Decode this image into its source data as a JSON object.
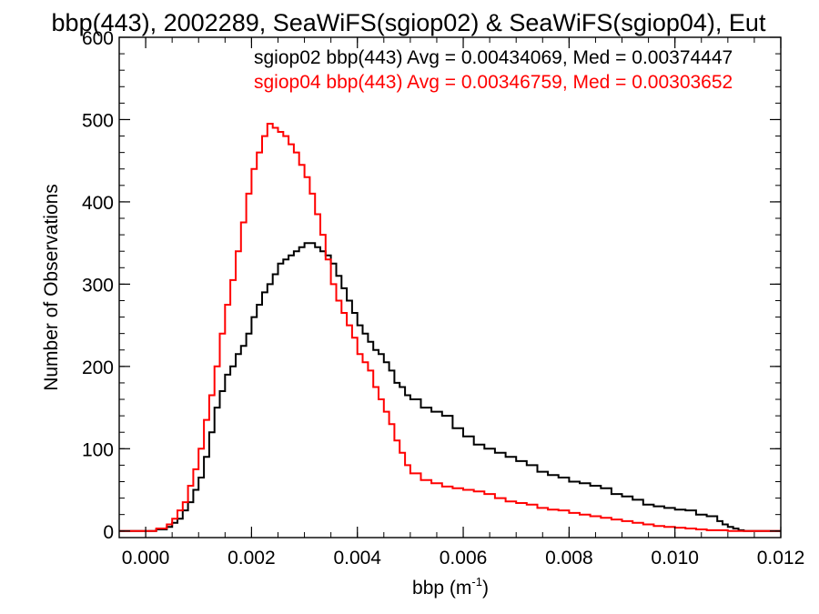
{
  "chart_data": {
    "type": "line",
    "title": "bbp(443), 2002289, SeaWiFS(sgiop02) & SeaWiFS(sgiop04), Eut",
    "xlabel_main": "bbp (m",
    "xlabel_sup": "-1",
    "xlabel_close": ")",
    "ylabel": "Number of Observations",
    "xlim": [
      -0.0005,
      0.012
    ],
    "ylim": [
      -8,
      600
    ],
    "x_ticks": [
      {
        "v": 0.0,
        "label": "0.000"
      },
      {
        "v": 0.002,
        "label": "0.002"
      },
      {
        "v": 0.004,
        "label": "0.004"
      },
      {
        "v": 0.006,
        "label": "0.006"
      },
      {
        "v": 0.008,
        "label": "0.008"
      },
      {
        "v": 0.01,
        "label": "0.010"
      },
      {
        "v": 0.012,
        "label": "0.012"
      }
    ],
    "y_ticks": [
      {
        "v": 0,
        "label": "0"
      },
      {
        "v": 100,
        "label": "100"
      },
      {
        "v": 200,
        "label": "200"
      },
      {
        "v": 300,
        "label": "300"
      },
      {
        "v": 400,
        "label": "400"
      },
      {
        "v": 500,
        "label": "500"
      },
      {
        "v": 600,
        "label": "600"
      }
    ],
    "grid": false,
    "legend_position": "top-right",
    "annotations": [
      {
        "text": "sgiop02 bbp(443) Avg = 0.00434069, Med = 0.00374447",
        "color": "#000000"
      },
      {
        "text": "sgiop04 bbp(443) Avg = 0.00346759, Med = 0.00303652",
        "color": "#ff0000"
      }
    ],
    "series": [
      {
        "name": "sgiop02",
        "color": "#000000",
        "x": [
          -0.0005,
          0.0,
          0.0002,
          0.0004,
          0.0005,
          0.0006,
          0.0007,
          0.0008,
          0.0009,
          0.001,
          0.0011,
          0.0012,
          0.0013,
          0.0014,
          0.0015,
          0.0016,
          0.0017,
          0.0018,
          0.0019,
          0.002,
          0.0021,
          0.0022,
          0.0023,
          0.0024,
          0.0025,
          0.0026,
          0.0027,
          0.0028,
          0.0029,
          0.003,
          0.0031,
          0.0032,
          0.0033,
          0.0034,
          0.0035,
          0.0036,
          0.0037,
          0.0038,
          0.0039,
          0.004,
          0.0041,
          0.0042,
          0.0043,
          0.0044,
          0.0045,
          0.0046,
          0.0047,
          0.0048,
          0.0049,
          0.005,
          0.0052,
          0.0054,
          0.0056,
          0.0058,
          0.006,
          0.0062,
          0.0064,
          0.0066,
          0.0068,
          0.007,
          0.0072,
          0.0074,
          0.0076,
          0.0078,
          0.008,
          0.0082,
          0.0084,
          0.0086,
          0.0088,
          0.009,
          0.0092,
          0.0094,
          0.0096,
          0.0098,
          0.01,
          0.0102,
          0.0104,
          0.0106,
          0.0108,
          0.0109,
          0.011,
          0.0111,
          0.0112,
          0.0113,
          0.0114,
          0.0115,
          0.012
        ],
        "y": [
          0,
          0,
          2,
          5,
          10,
          15,
          25,
          35,
          50,
          65,
          90,
          120,
          150,
          170,
          190,
          200,
          215,
          225,
          240,
          260,
          275,
          290,
          300,
          312,
          325,
          330,
          335,
          340,
          345,
          350,
          350,
          345,
          340,
          335,
          325,
          310,
          295,
          280,
          265,
          250,
          240,
          230,
          220,
          215,
          205,
          195,
          180,
          175,
          165,
          160,
          150,
          145,
          140,
          125,
          115,
          105,
          100,
          95,
          90,
          85,
          80,
          72,
          68,
          65,
          60,
          58,
          55,
          52,
          45,
          42,
          38,
          32,
          30,
          28,
          26,
          25,
          20,
          18,
          12,
          8,
          5,
          3,
          1,
          0,
          0,
          0,
          0
        ]
      },
      {
        "name": "sgiop04",
        "color": "#ff0000",
        "x": [
          -0.0005,
          0.0,
          0.0002,
          0.0004,
          0.0005,
          0.0006,
          0.0007,
          0.0008,
          0.0009,
          0.001,
          0.0011,
          0.0012,
          0.0013,
          0.0014,
          0.0015,
          0.0016,
          0.0017,
          0.0018,
          0.0019,
          0.002,
          0.0021,
          0.0022,
          0.0023,
          0.0024,
          0.0025,
          0.0026,
          0.0027,
          0.0028,
          0.0029,
          0.003,
          0.0031,
          0.0032,
          0.0033,
          0.0034,
          0.0035,
          0.0036,
          0.0037,
          0.0038,
          0.0039,
          0.004,
          0.0041,
          0.0042,
          0.0043,
          0.0044,
          0.0045,
          0.0046,
          0.0047,
          0.0048,
          0.0049,
          0.005,
          0.0052,
          0.0054,
          0.0056,
          0.0058,
          0.006,
          0.0062,
          0.0064,
          0.0066,
          0.0068,
          0.007,
          0.0072,
          0.0074,
          0.0076,
          0.0078,
          0.008,
          0.0082,
          0.0084,
          0.0086,
          0.0088,
          0.009,
          0.0092,
          0.0094,
          0.0096,
          0.0098,
          0.01,
          0.0102,
          0.0104,
          0.0106,
          0.0108,
          0.0109,
          0.011,
          0.0111,
          0.0112,
          0.0113,
          0.0114,
          0.0115,
          0.012
        ],
        "y": [
          0,
          0,
          3,
          8,
          15,
          25,
          35,
          55,
          75,
          100,
          135,
          165,
          200,
          240,
          275,
          305,
          340,
          375,
          410,
          440,
          460,
          480,
          495,
          490,
          485,
          480,
          470,
          460,
          445,
          430,
          410,
          385,
          360,
          330,
          300,
          280,
          265,
          250,
          235,
          215,
          205,
          195,
          175,
          160,
          145,
          130,
          110,
          95,
          80,
          70,
          62,
          58,
          54,
          52,
          50,
          48,
          45,
          40,
          36,
          34,
          32,
          28,
          26,
          25,
          22,
          20,
          18,
          16,
          14,
          12,
          10,
          8,
          6,
          5,
          4,
          3,
          2,
          1,
          1,
          1,
          0,
          0,
          0,
          0,
          0,
          0,
          0
        ]
      }
    ]
  }
}
